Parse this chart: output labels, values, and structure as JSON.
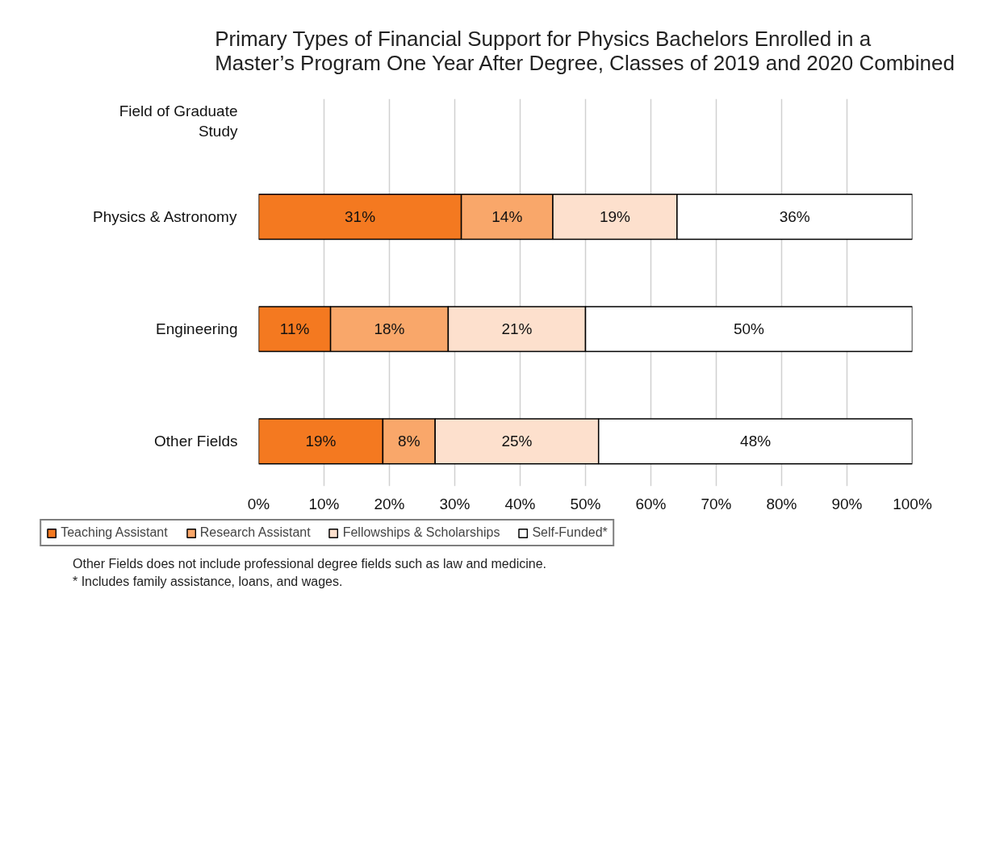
{
  "chart_data": {
    "type": "bar",
    "orientation": "horizontal",
    "stacked": true,
    "title": "Primary Types of Financial Support for Physics Bachelors Enrolled in a\nMaster’s Program One Year After Degree, Classes of 2019 and 2020 Combined",
    "ylabel": "Field of Graduate\nStudy",
    "categories": [
      "Physics & Astronomy",
      "Engineering",
      "Other Fields"
    ],
    "series": [
      {
        "name": "Teaching Assistant",
        "color": "#f47920",
        "values": [
          31,
          11,
          19
        ],
        "value_labels": [
          "31%",
          "11%",
          "19%"
        ]
      },
      {
        "name": "Research Assistant",
        "color": "#f9a76a",
        "values": [
          14,
          18,
          8
        ],
        "value_labels": [
          "14%",
          "18%",
          "8%"
        ]
      },
      {
        "name": "Fellowships & Scholarships",
        "color": "#fde0cd",
        "values": [
          19,
          21,
          25
        ],
        "value_labels": [
          "19%",
          "21%",
          "25%"
        ]
      },
      {
        "name": "Self-Funded*",
        "color": "#ffffff",
        "values": [
          36,
          50,
          48
        ],
        "value_labels": [
          "36%",
          "50%",
          "48%"
        ]
      }
    ],
    "xlim": [
      0,
      100
    ],
    "xticks": [
      {
        "value": 0,
        "label": "0%"
      },
      {
        "value": 10,
        "label": "10%"
      },
      {
        "value": 20,
        "label": "20%"
      },
      {
        "value": 30,
        "label": "30%"
      },
      {
        "value": 40,
        "label": "40%"
      },
      {
        "value": 50,
        "label": "50%"
      },
      {
        "value": 60,
        "label": "60%"
      },
      {
        "value": 70,
        "label": "70%"
      },
      {
        "value": 80,
        "label": "80%"
      },
      {
        "value": 90,
        "label": "90%"
      },
      {
        "value": 100,
        "label": "100%"
      }
    ],
    "grid": "x",
    "legend": "bottom",
    "annotations": [
      "Other Fields does not include professional degree fields such as law and medicine.",
      "* Includes family assistance, loans, and wages."
    ]
  }
}
